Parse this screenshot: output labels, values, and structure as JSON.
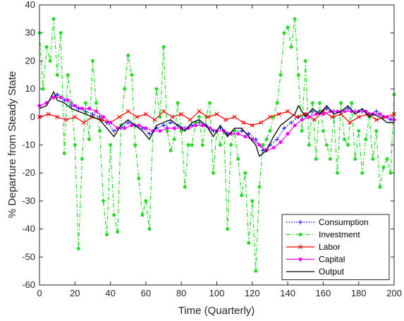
{
  "chart_data": {
    "type": "line",
    "xlabel": "Time (Quarterly)",
    "ylabel": "% Departure from Steady State",
    "xlim": [
      0,
      200
    ],
    "ylim": [
      -60,
      40
    ],
    "xticks": [
      0,
      20,
      40,
      60,
      80,
      100,
      120,
      140,
      160,
      180,
      200
    ],
    "yticks": [
      -60,
      -50,
      -40,
      -30,
      -20,
      -10,
      0,
      10,
      20,
      30,
      40
    ],
    "grid": false,
    "legend_position": "bottom-right",
    "series": [
      {
        "name": "Consumption",
        "color": "#0000ff",
        "style": "dotted",
        "marker": "plus",
        "x": [
          0,
          4,
          8,
          10,
          14,
          18,
          22,
          26,
          30,
          34,
          38,
          42,
          46,
          50,
          54,
          58,
          62,
          66,
          70,
          74,
          78,
          82,
          86,
          90,
          94,
          98,
          102,
          106,
          110,
          114,
          118,
          122,
          126,
          130,
          134,
          138,
          142,
          146,
          150,
          154,
          158,
          162,
          166,
          170,
          174,
          178,
          182,
          186,
          190,
          194,
          198,
          200
        ],
        "y": [
          4,
          5,
          7,
          8,
          6,
          4,
          3,
          2,
          1,
          0,
          -2,
          -5,
          -4,
          -2,
          -3,
          -4,
          -6,
          -4,
          -3,
          -2,
          -3,
          -4,
          -3,
          -2,
          -3,
          -5,
          -4,
          -6,
          -5,
          -5,
          -6,
          -8,
          -12,
          -10,
          -8,
          -4,
          -2,
          0,
          1,
          2,
          2,
          3,
          2,
          2,
          3,
          2,
          2,
          1,
          2,
          0,
          -1,
          -1
        ]
      },
      {
        "name": "Investment",
        "color": "#22dd22",
        "style": "dashdot",
        "marker": "circle",
        "x": [
          0,
          2,
          4,
          6,
          8,
          10,
          12,
          14,
          16,
          18,
          20,
          22,
          24,
          26,
          28,
          30,
          32,
          34,
          36,
          38,
          40,
          42,
          44,
          46,
          48,
          50,
          52,
          54,
          56,
          58,
          60,
          62,
          64,
          66,
          68,
          70,
          72,
          74,
          76,
          78,
          80,
          82,
          84,
          86,
          88,
          90,
          92,
          94,
          96,
          98,
          100,
          102,
          104,
          106,
          108,
          110,
          112,
          114,
          116,
          118,
          120,
          122,
          124,
          126,
          128,
          130,
          132,
          134,
          136,
          138,
          140,
          142,
          144,
          146,
          148,
          150,
          152,
          154,
          156,
          158,
          160,
          162,
          164,
          166,
          168,
          170,
          172,
          174,
          176,
          178,
          180,
          182,
          184,
          186,
          188,
          190,
          192,
          194,
          196,
          198,
          200
        ],
        "y": [
          30,
          10,
          25,
          20,
          35,
          15,
          30,
          -13,
          15,
          5,
          -10,
          -47,
          -15,
          5,
          -8,
          20,
          5,
          -5,
          -30,
          -42,
          -10,
          -35,
          -41,
          -3,
          10,
          22,
          15,
          -10,
          -22,
          -35,
          -30,
          -40,
          -5,
          10,
          0,
          25,
          -5,
          -12,
          -8,
          5,
          -5,
          -25,
          -10,
          -10,
          -2,
          0,
          -10,
          0,
          5,
          -20,
          -5,
          -10,
          -5,
          -40,
          -10,
          -5,
          -15,
          -28,
          -20,
          -45,
          -30,
          -55,
          -25,
          -10,
          -8,
          -5,
          0,
          5,
          15,
          30,
          32,
          25,
          35,
          15,
          -5,
          20,
          -10,
          5,
          -15,
          5,
          -5,
          -10,
          -15,
          0,
          -20,
          5,
          -8,
          -10,
          5,
          -15,
          -5,
          -20,
          -8,
          0,
          -15,
          -5,
          -25,
          -18,
          -15,
          -20,
          8
        ]
      },
      {
        "name": "Labor",
        "color": "#ff0000",
        "style": "solid",
        "marker": "x",
        "x": [
          0,
          5,
          10,
          15,
          20,
          25,
          30,
          35,
          40,
          45,
          50,
          55,
          60,
          65,
          70,
          75,
          80,
          85,
          90,
          95,
          100,
          105,
          110,
          115,
          120,
          125,
          130,
          135,
          140,
          145,
          150,
          155,
          160,
          165,
          170,
          175,
          180,
          185,
          190,
          195,
          200
        ],
        "y": [
          0,
          1,
          0,
          -1,
          0,
          -2,
          0,
          -1,
          -2,
          0,
          2,
          0,
          1,
          -1,
          2,
          0,
          1,
          -1,
          2,
          0,
          1,
          -1,
          0,
          -2,
          -3,
          -2,
          0,
          1,
          2,
          0,
          1,
          -1,
          2,
          0,
          1,
          -2,
          0,
          1,
          -1,
          0,
          1
        ]
      },
      {
        "name": "Capital",
        "color": "#ff00ff",
        "style": "solid",
        "marker": "circle",
        "x": [
          0,
          4,
          8,
          12,
          16,
          20,
          24,
          28,
          32,
          36,
          40,
          44,
          48,
          52,
          56,
          60,
          64,
          68,
          72,
          76,
          80,
          84,
          88,
          92,
          96,
          100,
          104,
          108,
          112,
          116,
          120,
          124,
          128,
          132,
          136,
          140,
          144,
          148,
          152,
          156,
          160,
          164,
          168,
          172,
          176,
          180,
          184,
          188,
          192,
          196,
          200
        ],
        "y": [
          4,
          5,
          7,
          7,
          6,
          4,
          3,
          3,
          2,
          0,
          -2,
          -4,
          -4,
          -3,
          -3,
          -4,
          -5,
          -5,
          -4,
          -4,
          -4,
          -4,
          -3,
          -3,
          -4,
          -5,
          -5,
          -6,
          -6,
          -7,
          -8,
          -10,
          -12,
          -11,
          -9,
          -6,
          -3,
          -1,
          0,
          1,
          1,
          2,
          2,
          2,
          2,
          2,
          2,
          1,
          1,
          0,
          -1
        ]
      },
      {
        "name": "Output",
        "color": "#000000",
        "style": "solid",
        "marker": "none",
        "x": [
          0,
          4,
          8,
          10,
          14,
          18,
          22,
          26,
          30,
          34,
          38,
          42,
          46,
          50,
          54,
          58,
          62,
          66,
          70,
          74,
          78,
          82,
          86,
          90,
          94,
          98,
          102,
          106,
          110,
          114,
          118,
          122,
          124,
          128,
          132,
          136,
          140,
          144,
          146,
          150,
          154,
          158,
          162,
          166,
          170,
          174,
          178,
          182,
          186,
          188,
          192,
          196,
          200
        ],
        "y": [
          3,
          4,
          9,
          6,
          5,
          3,
          2,
          1,
          0,
          -1,
          -4,
          -7,
          -3,
          -1,
          -3,
          -5,
          -8,
          -3,
          -2,
          -1,
          -3,
          -5,
          -2,
          -1,
          -3,
          -7,
          -3,
          -7,
          -4,
          -4,
          -7,
          -10,
          -14,
          -12,
          -7,
          -3,
          -1,
          1,
          4,
          0,
          3,
          1,
          4,
          1,
          2,
          4,
          1,
          3,
          0,
          1,
          0,
          -2,
          -2
        ]
      }
    ]
  }
}
